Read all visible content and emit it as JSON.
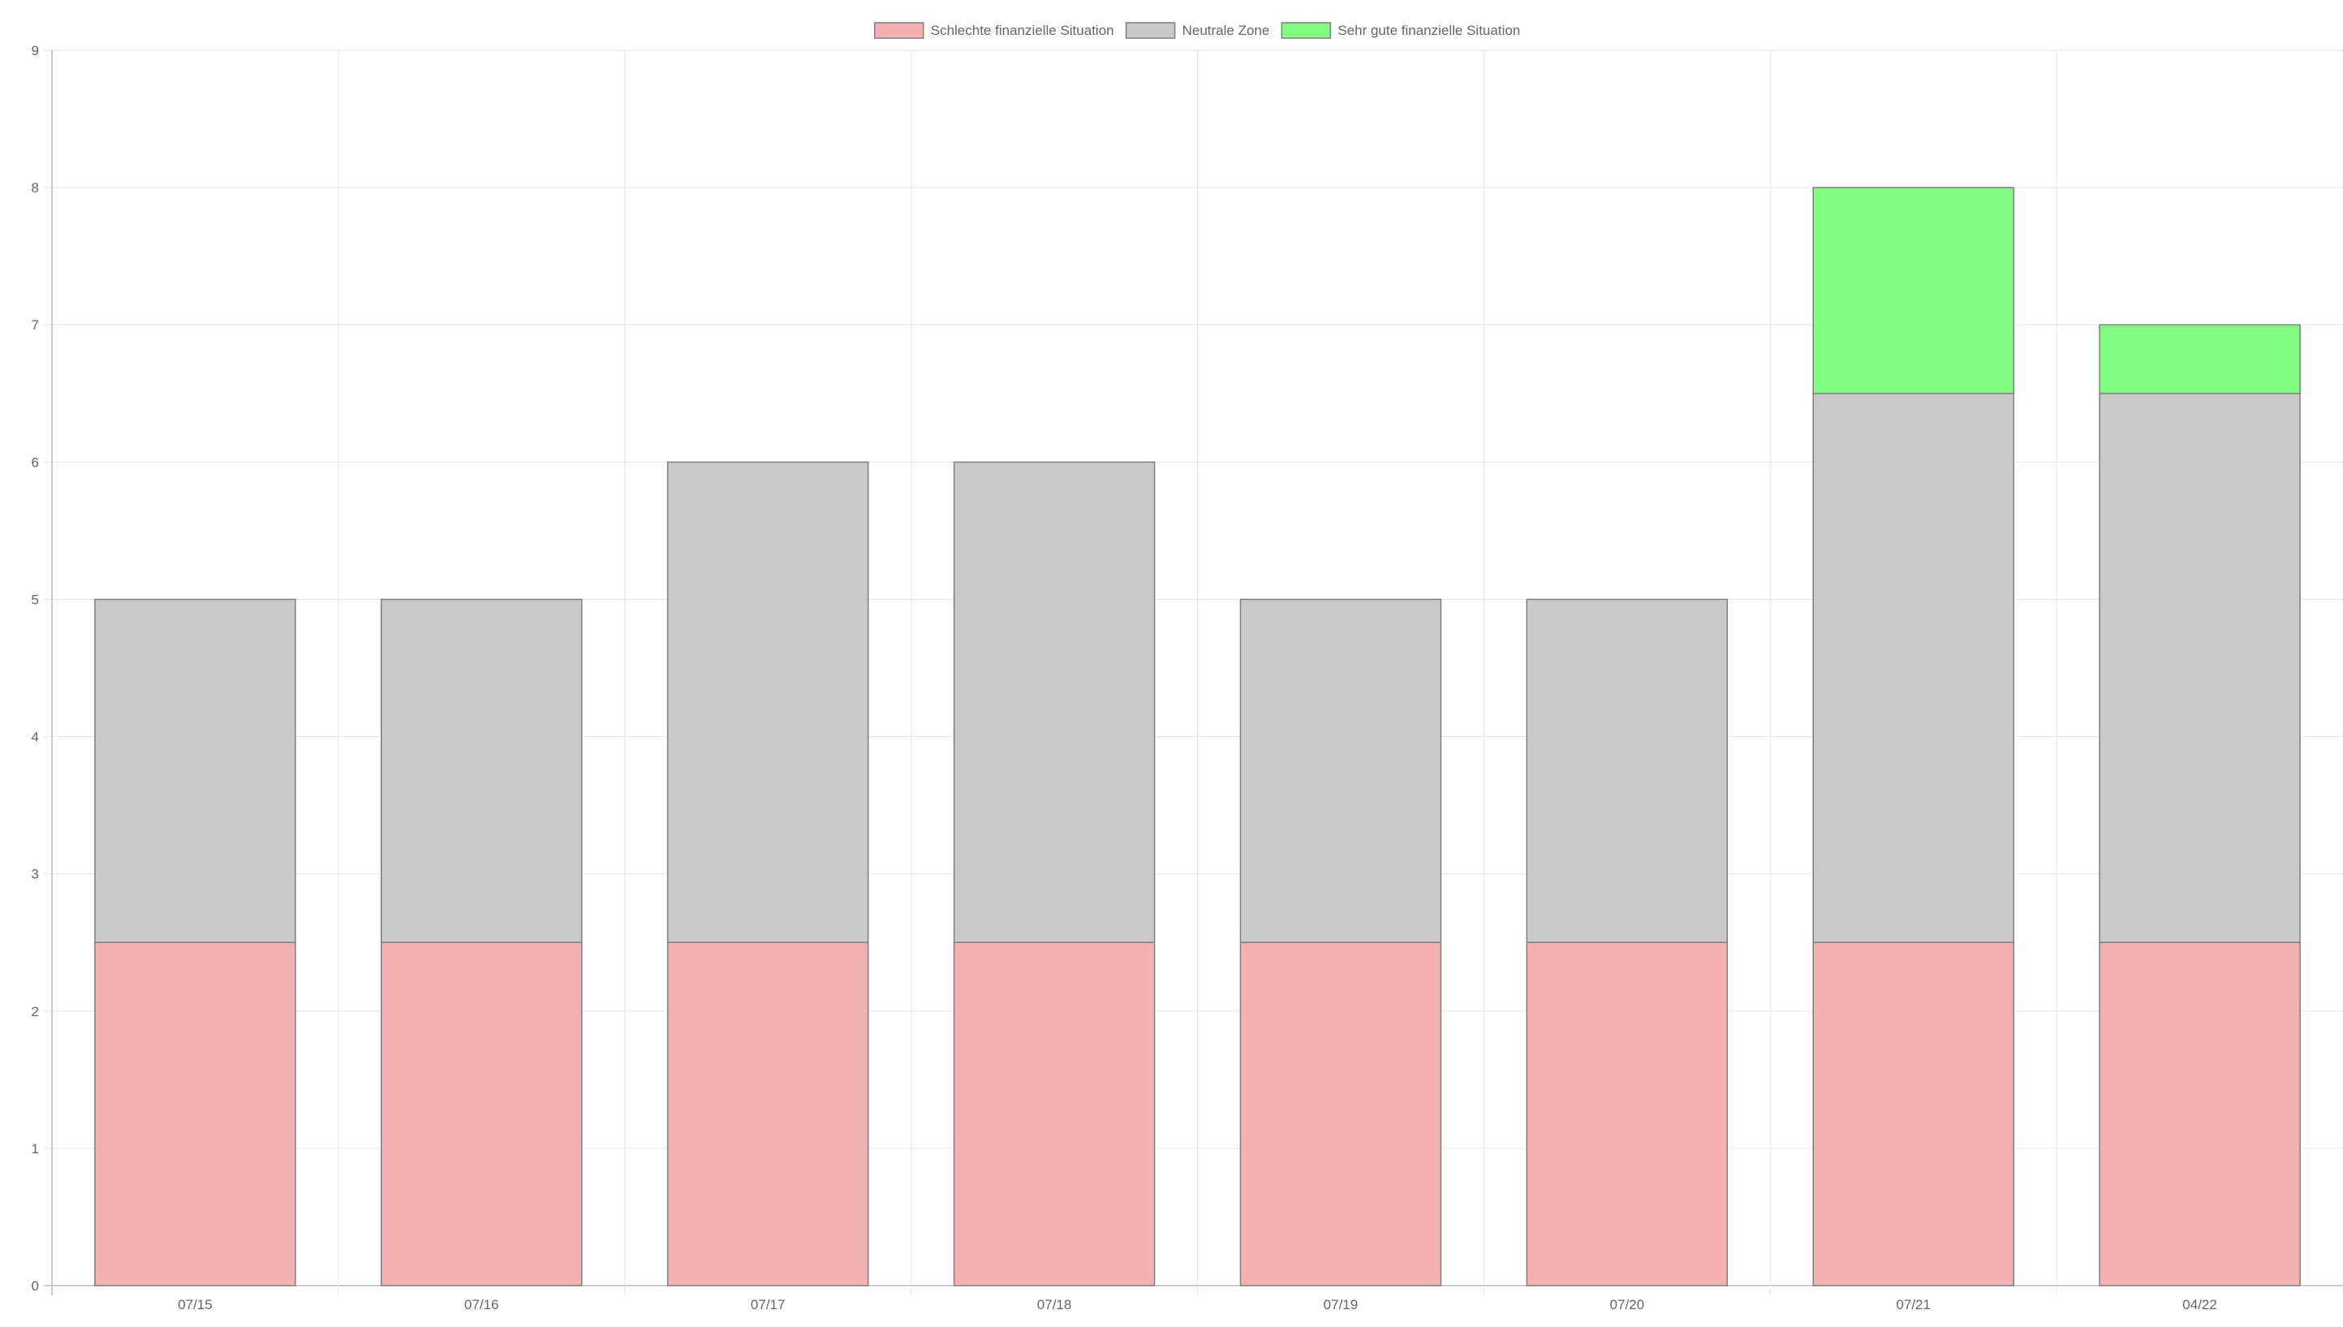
{
  "chart_data": {
    "type": "bar",
    "stacked": true,
    "title": "",
    "xlabel": "",
    "ylabel": "",
    "categories": [
      "07/15",
      "07/16",
      "07/17",
      "07/18",
      "07/19",
      "07/20",
      "07/21",
      "04/22"
    ],
    "series": [
      {
        "name": "Schlechte finanzielle Situation",
        "values": [
          2.5,
          2.5,
          2.5,
          2.5,
          2.5,
          2.5,
          2.5,
          2.5
        ],
        "color": "#f4b1b1"
      },
      {
        "name": "Neutrale Zone",
        "values": [
          2.5,
          2.5,
          3.5,
          3.5,
          2.5,
          2.5,
          4.0,
          4.0
        ],
        "color": "#c9c9c9"
      },
      {
        "name": "Sehr gute finanzielle Situation",
        "values": [
          0,
          0,
          0,
          0,
          0,
          0,
          1.5,
          0.5
        ],
        "color": "#80fd7e"
      }
    ],
    "ylim": [
      0,
      9
    ],
    "yticks": [
      0,
      1,
      2,
      3,
      4,
      5,
      6,
      7,
      8,
      9
    ],
    "grid": true,
    "legend_position": "top-center",
    "bar_border_color": "#7f7f7f",
    "grid_color": "#e6e6e6",
    "axis_color": "#bdbdbd",
    "text_color": "#666666"
  }
}
